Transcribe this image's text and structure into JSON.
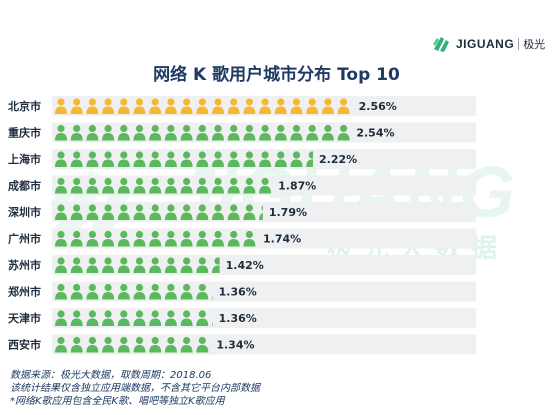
{
  "brand": {
    "logo_text": "JIGUANG",
    "logo_cn": "极光",
    "watermark_text": "JIGUANG",
    "watermark_cn": "极光大数据"
  },
  "colors": {
    "highlight_icon": "#f5b82e",
    "normal_icon": "#5cb85c",
    "bar_background": "#eef0f2",
    "title": "#1f3b63",
    "brand_green": "#2bb27a"
  },
  "chart_data": {
    "type": "bar",
    "title": "网络 K 歌用户城市分布 Top 10",
    "orientation": "horizontal",
    "style": "pictogram",
    "categories": [
      "北京市",
      "重庆市",
      "上海市",
      "成都市",
      "深圳市",
      "广州市",
      "苏州市",
      "郑州市",
      "天津市",
      "西安市"
    ],
    "values": [
      2.56,
      2.54,
      2.22,
      1.87,
      1.79,
      1.74,
      1.42,
      1.36,
      1.36,
      1.34
    ],
    "value_labels": [
      "2.56%",
      "2.54%",
      "2.22%",
      "1.87%",
      "1.79%",
      "1.74%",
      "1.42%",
      "1.36%",
      "1.36%",
      "1.34%"
    ],
    "highlighted": [
      0
    ],
    "unit": "%",
    "xlim": [
      0,
      3.6
    ]
  },
  "notes": [
    "数据来源：极光大数据，取数周期：2018.06",
    "该统计结果仅含独立应用端数据，不含其它平台内部数据",
    "*网络K歌应用包含全民K歌、唱吧等独立K歌应用"
  ]
}
